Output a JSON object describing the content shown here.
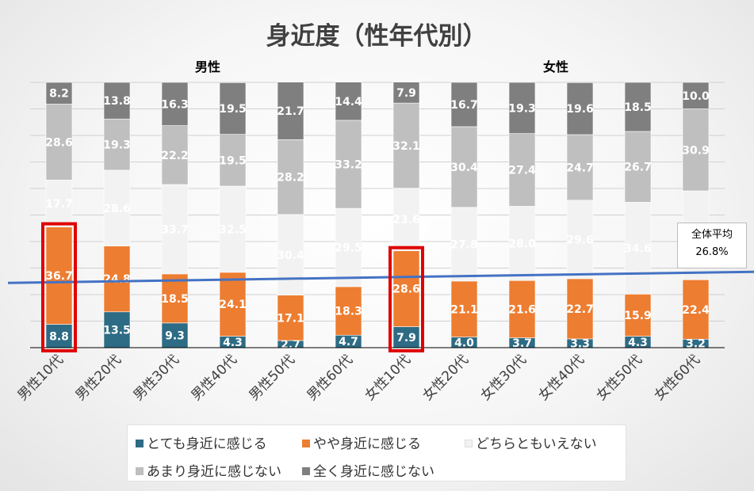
{
  "chart_data": {
    "type": "bar",
    "stacked": true,
    "title": "身近度（性年代別）",
    "group_labels": [
      "男性",
      "女性"
    ],
    "categories": [
      "男性10代",
      "男性20代",
      "男性30代",
      "男性40代",
      "男性50代",
      "男性60代",
      "女性10代",
      "女性20代",
      "女性30代",
      "女性40代",
      "女性50代",
      "女性60代"
    ],
    "series": [
      {
        "name": "とても身近に感じる",
        "color": "#2e6b85",
        "values": [
          8.8,
          13.5,
          9.3,
          4.3,
          2.7,
          4.7,
          7.9,
          4.0,
          3.7,
          3.3,
          4.3,
          3.2
        ]
      },
      {
        "name": "やや身近に感じる",
        "color": "#ed7d31",
        "values": [
          36.7,
          24.8,
          18.5,
          24.1,
          17.1,
          18.3,
          28.6,
          21.1,
          21.6,
          22.7,
          15.9,
          22.4
        ]
      },
      {
        "name": "どちらともいえない",
        "color": "#f2f2f2",
        "values": [
          17.7,
          28.6,
          33.7,
          32.5,
          30.4,
          29.5,
          23.6,
          27.8,
          28.0,
          29.6,
          34.6,
          33.5
        ]
      },
      {
        "name": "あまり身近に感じない",
        "color": "#bfbfbf",
        "values": [
          28.6,
          19.3,
          22.2,
          19.5,
          28.2,
          33.2,
          32.1,
          30.4,
          27.4,
          24.7,
          26.7,
          30.9
        ]
      },
      {
        "name": "全く身近に感じない",
        "color": "#7f7f7f",
        "values": [
          8.2,
          13.8,
          16.3,
          19.5,
          21.7,
          14.4,
          7.9,
          16.7,
          19.3,
          19.6,
          18.5,
          10.0
        ]
      }
    ],
    "reference_line": {
      "label_line1": "全体平均",
      "label_line2": "26.8%",
      "value": 26.8,
      "color": "#4472c4"
    },
    "highlighted_categories": [
      "男性10代",
      "女性10代"
    ],
    "highlight_color": "#e00000",
    "ylim": [
      0,
      100
    ],
    "grid": true,
    "legend_position": "bottom"
  }
}
